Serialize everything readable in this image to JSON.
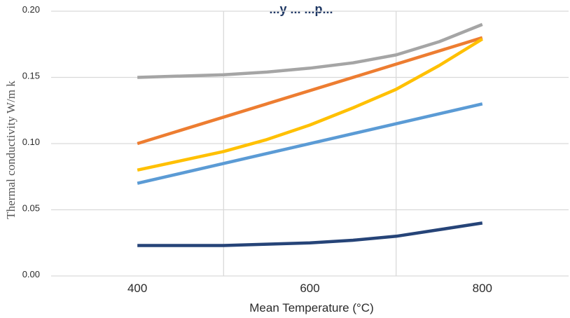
{
  "chart_data": {
    "type": "line",
    "title": "...y ... ...p...",
    "xlabel": "Mean Temperature (°C)",
    "ylabel": "Thermal conductivity W/m k",
    "x_ticks": [
      "400",
      "600",
      "800"
    ],
    "y_ticks": [
      "0.00",
      "0.05",
      "0.10",
      "0.15",
      "0.20"
    ],
    "xlim": [
      300,
      900
    ],
    "ylim": [
      0,
      0.2
    ],
    "grid": true,
    "legend": "none",
    "series": [
      {
        "color": "#a5a5a5",
        "x": [
          400,
          450,
          500,
          550,
          600,
          650,
          700,
          750,
          800
        ],
        "y": [
          0.15,
          0.151,
          0.152,
          0.154,
          0.157,
          0.161,
          0.167,
          0.177,
          0.19
        ]
      },
      {
        "color": "#ed7d31",
        "x": [
          400,
          800
        ],
        "y": [
          0.1,
          0.18
        ]
      },
      {
        "color": "#ffc000",
        "x": [
          400,
          450,
          500,
          550,
          600,
          650,
          700,
          750,
          800
        ],
        "y": [
          0.08,
          0.087,
          0.094,
          0.103,
          0.114,
          0.127,
          0.141,
          0.159,
          0.179
        ]
      },
      {
        "color": "#5b9bd5",
        "x": [
          400,
          800
        ],
        "y": [
          0.07,
          0.13
        ]
      },
      {
        "color": "#264478",
        "x": [
          400,
          450,
          500,
          550,
          600,
          650,
          700,
          750,
          800
        ],
        "y": [
          0.023,
          0.023,
          0.023,
          0.024,
          0.025,
          0.027,
          0.03,
          0.035,
          0.04
        ]
      }
    ]
  }
}
